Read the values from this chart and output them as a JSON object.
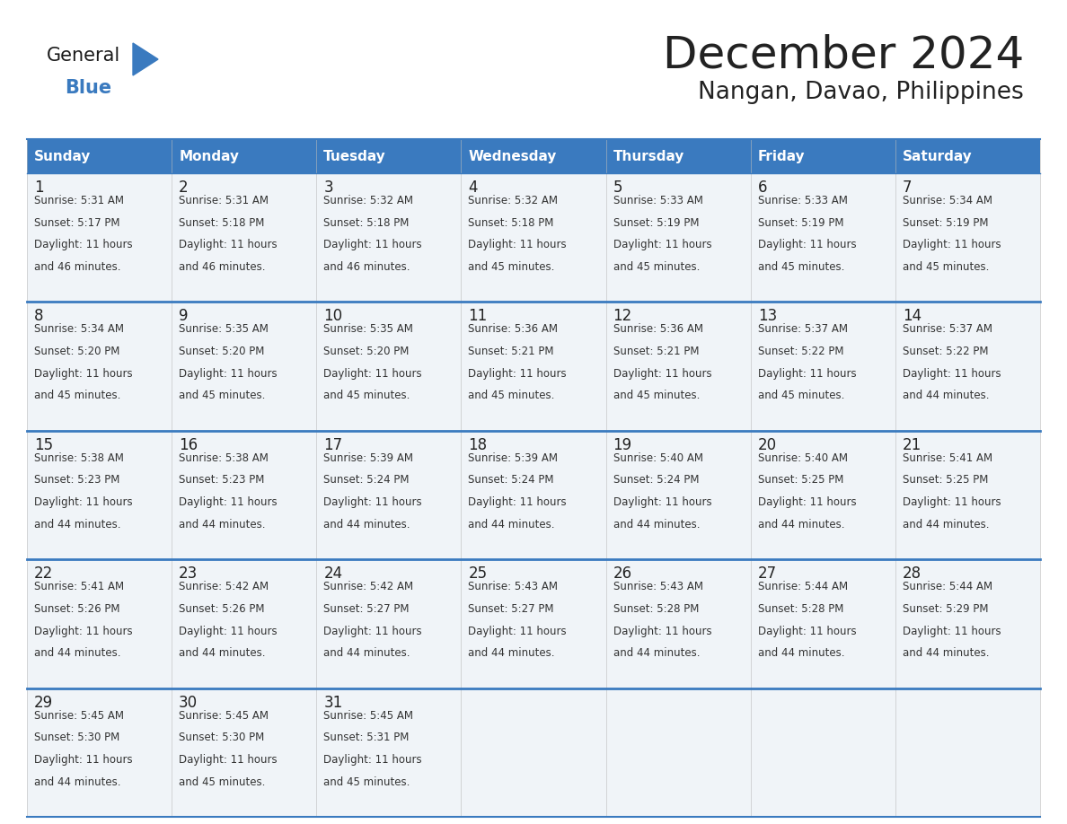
{
  "title": "December 2024",
  "subtitle": "Nangan, Davao, Philippines",
  "header_bg_color": "#3a7abf",
  "header_text_color": "#ffffff",
  "cell_bg_color": "#f0f4f8",
  "row_line_color": "#3a7abf",
  "days_of_week": [
    "Sunday",
    "Monday",
    "Tuesday",
    "Wednesday",
    "Thursday",
    "Friday",
    "Saturday"
  ],
  "calendar_data": [
    [
      {
        "day": 1,
        "sunrise": "5:31 AM",
        "sunset": "5:17 PM",
        "daylight_line1": "Daylight: 11 hours",
        "daylight_line2": "and 46 minutes."
      },
      {
        "day": 2,
        "sunrise": "5:31 AM",
        "sunset": "5:18 PM",
        "daylight_line1": "Daylight: 11 hours",
        "daylight_line2": "and 46 minutes."
      },
      {
        "day": 3,
        "sunrise": "5:32 AM",
        "sunset": "5:18 PM",
        "daylight_line1": "Daylight: 11 hours",
        "daylight_line2": "and 46 minutes."
      },
      {
        "day": 4,
        "sunrise": "5:32 AM",
        "sunset": "5:18 PM",
        "daylight_line1": "Daylight: 11 hours",
        "daylight_line2": "and 45 minutes."
      },
      {
        "day": 5,
        "sunrise": "5:33 AM",
        "sunset": "5:19 PM",
        "daylight_line1": "Daylight: 11 hours",
        "daylight_line2": "and 45 minutes."
      },
      {
        "day": 6,
        "sunrise": "5:33 AM",
        "sunset": "5:19 PM",
        "daylight_line1": "Daylight: 11 hours",
        "daylight_line2": "and 45 minutes."
      },
      {
        "day": 7,
        "sunrise": "5:34 AM",
        "sunset": "5:19 PM",
        "daylight_line1": "Daylight: 11 hours",
        "daylight_line2": "and 45 minutes."
      }
    ],
    [
      {
        "day": 8,
        "sunrise": "5:34 AM",
        "sunset": "5:20 PM",
        "daylight_line1": "Daylight: 11 hours",
        "daylight_line2": "and 45 minutes."
      },
      {
        "day": 9,
        "sunrise": "5:35 AM",
        "sunset": "5:20 PM",
        "daylight_line1": "Daylight: 11 hours",
        "daylight_line2": "and 45 minutes."
      },
      {
        "day": 10,
        "sunrise": "5:35 AM",
        "sunset": "5:20 PM",
        "daylight_line1": "Daylight: 11 hours",
        "daylight_line2": "and 45 minutes."
      },
      {
        "day": 11,
        "sunrise": "5:36 AM",
        "sunset": "5:21 PM",
        "daylight_line1": "Daylight: 11 hours",
        "daylight_line2": "and 45 minutes."
      },
      {
        "day": 12,
        "sunrise": "5:36 AM",
        "sunset": "5:21 PM",
        "daylight_line1": "Daylight: 11 hours",
        "daylight_line2": "and 45 minutes."
      },
      {
        "day": 13,
        "sunrise": "5:37 AM",
        "sunset": "5:22 PM",
        "daylight_line1": "Daylight: 11 hours",
        "daylight_line2": "and 45 minutes."
      },
      {
        "day": 14,
        "sunrise": "5:37 AM",
        "sunset": "5:22 PM",
        "daylight_line1": "Daylight: 11 hours",
        "daylight_line2": "and 44 minutes."
      }
    ],
    [
      {
        "day": 15,
        "sunrise": "5:38 AM",
        "sunset": "5:23 PM",
        "daylight_line1": "Daylight: 11 hours",
        "daylight_line2": "and 44 minutes."
      },
      {
        "day": 16,
        "sunrise": "5:38 AM",
        "sunset": "5:23 PM",
        "daylight_line1": "Daylight: 11 hours",
        "daylight_line2": "and 44 minutes."
      },
      {
        "day": 17,
        "sunrise": "5:39 AM",
        "sunset": "5:24 PM",
        "daylight_line1": "Daylight: 11 hours",
        "daylight_line2": "and 44 minutes."
      },
      {
        "day": 18,
        "sunrise": "5:39 AM",
        "sunset": "5:24 PM",
        "daylight_line1": "Daylight: 11 hours",
        "daylight_line2": "and 44 minutes."
      },
      {
        "day": 19,
        "sunrise": "5:40 AM",
        "sunset": "5:24 PM",
        "daylight_line1": "Daylight: 11 hours",
        "daylight_line2": "and 44 minutes."
      },
      {
        "day": 20,
        "sunrise": "5:40 AM",
        "sunset": "5:25 PM",
        "daylight_line1": "Daylight: 11 hours",
        "daylight_line2": "and 44 minutes."
      },
      {
        "day": 21,
        "sunrise": "5:41 AM",
        "sunset": "5:25 PM",
        "daylight_line1": "Daylight: 11 hours",
        "daylight_line2": "and 44 minutes."
      }
    ],
    [
      {
        "day": 22,
        "sunrise": "5:41 AM",
        "sunset": "5:26 PM",
        "daylight_line1": "Daylight: 11 hours",
        "daylight_line2": "and 44 minutes."
      },
      {
        "day": 23,
        "sunrise": "5:42 AM",
        "sunset": "5:26 PM",
        "daylight_line1": "Daylight: 11 hours",
        "daylight_line2": "and 44 minutes."
      },
      {
        "day": 24,
        "sunrise": "5:42 AM",
        "sunset": "5:27 PM",
        "daylight_line1": "Daylight: 11 hours",
        "daylight_line2": "and 44 minutes."
      },
      {
        "day": 25,
        "sunrise": "5:43 AM",
        "sunset": "5:27 PM",
        "daylight_line1": "Daylight: 11 hours",
        "daylight_line2": "and 44 minutes."
      },
      {
        "day": 26,
        "sunrise": "5:43 AM",
        "sunset": "5:28 PM",
        "daylight_line1": "Daylight: 11 hours",
        "daylight_line2": "and 44 minutes."
      },
      {
        "day": 27,
        "sunrise": "5:44 AM",
        "sunset": "5:28 PM",
        "daylight_line1": "Daylight: 11 hours",
        "daylight_line2": "and 44 minutes."
      },
      {
        "day": 28,
        "sunrise": "5:44 AM",
        "sunset": "5:29 PM",
        "daylight_line1": "Daylight: 11 hours",
        "daylight_line2": "and 44 minutes."
      }
    ],
    [
      {
        "day": 29,
        "sunrise": "5:45 AM",
        "sunset": "5:30 PM",
        "daylight_line1": "Daylight: 11 hours",
        "daylight_line2": "and 44 minutes."
      },
      {
        "day": 30,
        "sunrise": "5:45 AM",
        "sunset": "5:30 PM",
        "daylight_line1": "Daylight: 11 hours",
        "daylight_line2": "and 45 minutes."
      },
      {
        "day": 31,
        "sunrise": "5:45 AM",
        "sunset": "5:31 PM",
        "daylight_line1": "Daylight: 11 hours",
        "daylight_line2": "and 45 minutes."
      },
      null,
      null,
      null,
      null
    ]
  ],
  "logo_text_general": "General",
  "logo_text_blue": "Blue",
  "logo_triangle_color": "#3a7abf",
  "logo_general_color": "#1a1a1a",
  "text_color": "#222222"
}
